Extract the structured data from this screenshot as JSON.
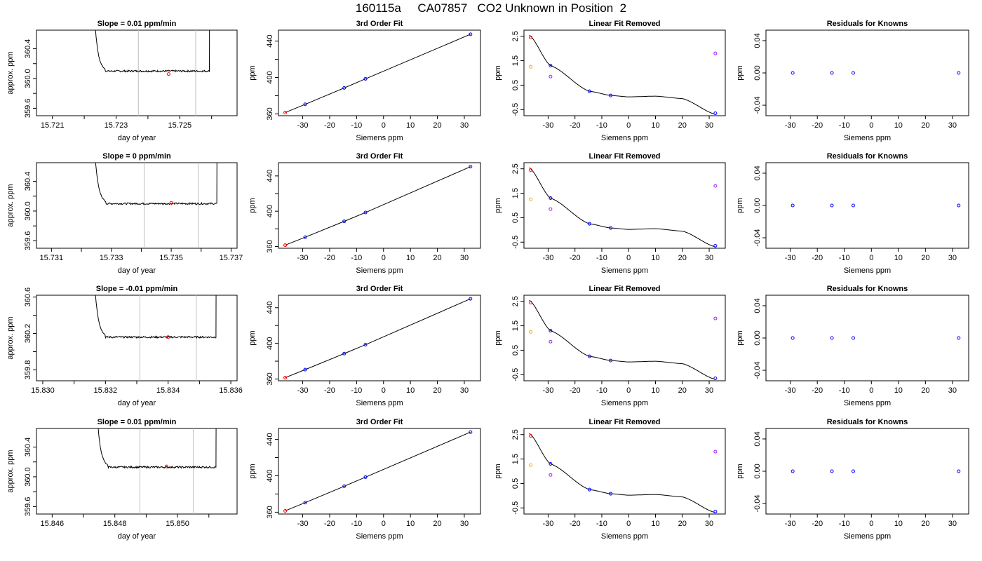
{
  "title": "160115a     CA07857   CO2 Unknown in Position  2",
  "colors": {
    "trace": "#000000",
    "window": "#c0c0c0",
    "marker": "#ff0000",
    "blue": "#0000ff",
    "orange": "#ffa500",
    "purple": "#a020f0",
    "fit": "#000000"
  },
  "chart_data": [
    {
      "type": "line",
      "title": "Slope =  0.01  ppm/min",
      "xlabel": "day of year",
      "ylabel": "approx. ppm",
      "xlim": [
        15.7205,
        15.7268
      ],
      "ylim": [
        359.5,
        360.65
      ],
      "xticks": [
        15.721,
        15.722,
        15.723,
        15.724,
        15.725,
        15.726
      ],
      "xtick_labels": [
        "15.721",
        "",
        "15.723",
        "",
        "15.725",
        ""
      ],
      "yticks": [
        359.6,
        359.8,
        360.0,
        360.2,
        360.4
      ],
      "ytick_labels": [
        "359.6",
        "",
        "360.0",
        "",
        "360.4"
      ],
      "baseline": 360.1,
      "noise": 0.012,
      "trace_x": [
        15.7222,
        15.726
      ],
      "windows": [
        15.7237,
        15.7255
      ],
      "marker": [
        15.72465,
        360.06
      ]
    },
    {
      "type": "scatter",
      "title": "3rd Order Fit",
      "xlabel": "Siemens ppm",
      "ylabel": "ppm",
      "xlim": [
        -39,
        36
      ],
      "ylim": [
        358,
        452
      ],
      "xticks": [
        -30,
        -20,
        -10,
        0,
        10,
        20,
        30
      ],
      "yticks": [
        360,
        380,
        400,
        420,
        440
      ],
      "ytick_labels": [
        "360",
        "",
        "400",
        "",
        "440"
      ],
      "x": [
        -36.5,
        -29.1,
        -14.6,
        -6.7,
        32.3
      ],
      "y": [
        361.5,
        370.5,
        388.5,
        398.5,
        447.5
      ]
    },
    {
      "type": "scatter",
      "title": "Linear Fit Removed",
      "xlabel": "Siemens ppm",
      "ylabel": "ppm",
      "xlim": [
        -39,
        36
      ],
      "ylim": [
        -0.75,
        2.75
      ],
      "xticks": [
        -30,
        -20,
        -10,
        0,
        10,
        20,
        30
      ],
      "yticks": [
        -0.5,
        0.5,
        1.5,
        2.5
      ],
      "ytick_labels": [
        "-0.5",
        "0.5",
        "1.5",
        "2.5"
      ],
      "points_blue": [
        [
          -29.1,
          1.3
        ],
        [
          -14.6,
          0.25
        ],
        [
          -6.7,
          0.08
        ],
        [
          32.3,
          -0.65
        ]
      ],
      "points_purple": [
        [
          -29.1,
          0.85
        ],
        [
          32.3,
          1.8
        ]
      ],
      "points_orange": [
        [
          -36.5,
          1.25
        ]
      ],
      "points_red": [
        [
          -36.5,
          2.45
        ]
      ],
      "curve": [
        0.0,
        -0.0004,
        6.5e-05,
        0.0
      ]
    },
    {
      "type": "scatter",
      "title": "Residuals for Knowns",
      "xlabel": "Siemens ppm",
      "ylabel": "ppm",
      "xlim": [
        -39,
        36
      ],
      "ylim": [
        -0.053,
        0.053
      ],
      "xticks": [
        -30,
        -20,
        -10,
        0,
        10,
        20,
        30
      ],
      "yticks": [
        -0.04,
        0.0,
        0.04
      ],
      "ytick_labels": [
        "-0.04",
        "0.00",
        "0.04"
      ],
      "x": [
        -29.1,
        -14.6,
        -6.7,
        32.3
      ],
      "y": [
        0,
        0,
        0,
        0
      ]
    },
    {
      "type": "line",
      "title": "Slope =  0  ppm/min",
      "xlabel": "day of year",
      "ylabel": "approx. ppm",
      "xlim": [
        15.7305,
        15.7372
      ],
      "ylim": [
        359.5,
        360.65
      ],
      "xticks": [
        15.731,
        15.732,
        15.733,
        15.734,
        15.735,
        15.736,
        15.737
      ],
      "xtick_labels": [
        "15.731",
        "",
        "15.733",
        "",
        "15.735",
        "",
        "15.737"
      ],
      "yticks": [
        359.6,
        359.8,
        360.0,
        360.2,
        360.4
      ],
      "ytick_labels": [
        "359.6",
        "",
        "360.0",
        "",
        "360.4"
      ],
      "baseline": 360.1,
      "noise": 0.012,
      "trace_x": [
        15.7323,
        15.7366
      ],
      "windows": [
        15.7341,
        15.7359
      ],
      "marker": [
        15.735,
        360.11
      ]
    },
    {
      "type": "scatter",
      "title": "3rd Order Fit",
      "xlabel": "Siemens ppm",
      "ylabel": "ppm",
      "xlim": [
        -39,
        36
      ],
      "ylim": [
        358,
        455
      ],
      "xticks": [
        -30,
        -20,
        -10,
        0,
        10,
        20,
        30
      ],
      "yticks": [
        360,
        380,
        400,
        420,
        440
      ],
      "ytick_labels": [
        "360",
        "",
        "400",
        "",
        "440"
      ],
      "x": [
        -36.5,
        -29.1,
        -14.6,
        -6.7,
        32.3
      ],
      "y": [
        361.5,
        370.5,
        388.5,
        398.5,
        450.5
      ]
    },
    {
      "type": "scatter",
      "title": "Linear Fit Removed",
      "xlabel": "Siemens ppm",
      "ylabel": "ppm",
      "xlim": [
        -39,
        36
      ],
      "ylim": [
        -0.75,
        2.75
      ],
      "xticks": [
        -30,
        -20,
        -10,
        0,
        10,
        20,
        30
      ],
      "yticks": [
        -0.5,
        0.5,
        1.5,
        2.5
      ],
      "ytick_labels": [
        "-0.5",
        "0.5",
        "1.5",
        "2.5"
      ],
      "points_blue": [
        [
          -29.1,
          1.3
        ],
        [
          -14.6,
          0.25
        ],
        [
          -6.7,
          0.08
        ],
        [
          32.3,
          -0.65
        ]
      ],
      "points_purple": [
        [
          -29.1,
          0.85
        ],
        [
          32.3,
          1.8
        ]
      ],
      "points_orange": [
        [
          -36.5,
          1.25
        ]
      ],
      "points_red": [
        [
          -36.5,
          2.45
        ]
      ],
      "curve": [
        0.0,
        -0.0004,
        6.5e-05,
        0.0
      ]
    },
    {
      "type": "scatter",
      "title": "Residuals for Knowns",
      "xlabel": "Siemens ppm",
      "ylabel": "ppm",
      "xlim": [
        -39,
        36
      ],
      "ylim": [
        -0.053,
        0.053
      ],
      "xticks": [
        -30,
        -20,
        -10,
        0,
        10,
        20,
        30
      ],
      "yticks": [
        -0.04,
        0.0,
        0.04
      ],
      "ytick_labels": [
        "-0.04",
        "0.00",
        "0.04"
      ],
      "x": [
        -29.1,
        -14.6,
        -6.7,
        32.3
      ],
      "y": [
        0,
        0,
        0,
        0
      ]
    },
    {
      "type": "line",
      "title": "Slope =  -0.01  ppm/min",
      "xlabel": "day of year",
      "ylabel": "approx. ppm",
      "xlim": [
        15.8298,
        15.8362
      ],
      "ylim": [
        359.68,
        360.62
      ],
      "xticks": [
        15.83,
        15.831,
        15.832,
        15.833,
        15.834,
        15.835,
        15.836
      ],
      "xtick_labels": [
        "15.830",
        "",
        "15.832",
        "",
        "15.834",
        "",
        "15.836"
      ],
      "yticks": [
        359.8,
        360.0,
        360.2,
        360.4,
        360.6
      ],
      "ytick_labels": [
        "359.8",
        "",
        "360.2",
        "",
        "360.6"
      ],
      "baseline": 360.16,
      "noise": 0.01,
      "trace_x": [
        15.8315,
        15.8356
      ],
      "windows": [
        15.8331,
        15.8349
      ],
      "marker": [
        15.834,
        360.16
      ]
    },
    {
      "type": "scatter",
      "title": "3rd Order Fit",
      "xlabel": "Siemens ppm",
      "ylabel": "ppm",
      "xlim": [
        -39,
        36
      ],
      "ylim": [
        358,
        454
      ],
      "xticks": [
        -30,
        -20,
        -10,
        0,
        10,
        20,
        30
      ],
      "yticks": [
        360,
        380,
        400,
        420,
        440
      ],
      "ytick_labels": [
        "360",
        "",
        "400",
        "",
        "440"
      ],
      "x": [
        -36.5,
        -29.1,
        -14.6,
        -6.7,
        32.3
      ],
      "y": [
        361.5,
        370.5,
        388.5,
        398.5,
        450
      ]
    },
    {
      "type": "scatter",
      "title": "Linear Fit Removed",
      "xlabel": "Siemens ppm",
      "ylabel": "ppm",
      "xlim": [
        -39,
        36
      ],
      "ylim": [
        -0.75,
        2.75
      ],
      "xticks": [
        -30,
        -20,
        -10,
        0,
        10,
        20,
        30
      ],
      "yticks": [
        -0.5,
        0.5,
        1.5,
        2.5
      ],
      "ytick_labels": [
        "-0.5",
        "0.5",
        "1.5",
        "2.5"
      ],
      "points_blue": [
        [
          -29.1,
          1.3
        ],
        [
          -14.6,
          0.25
        ],
        [
          -6.7,
          0.08
        ],
        [
          32.3,
          -0.65
        ]
      ],
      "points_purple": [
        [
          -29.1,
          0.85
        ],
        [
          32.3,
          1.8
        ]
      ],
      "points_orange": [
        [
          -36.5,
          1.25
        ]
      ],
      "points_red": [
        [
          -36.5,
          2.45
        ]
      ],
      "curve": [
        0.0,
        -0.0004,
        6.5e-05,
        0.0
      ]
    },
    {
      "type": "scatter",
      "title": "Residuals for Knowns",
      "xlabel": "Siemens ppm",
      "ylabel": "ppm",
      "xlim": [
        -39,
        36
      ],
      "ylim": [
        -0.053,
        0.053
      ],
      "xticks": [
        -30,
        -20,
        -10,
        0,
        10,
        20,
        30
      ],
      "yticks": [
        -0.04,
        0.0,
        0.04
      ],
      "ytick_labels": [
        "-0.04",
        "0.00",
        "0.04"
      ],
      "x": [
        -29.1,
        -14.6,
        -6.7,
        32.3
      ],
      "y": [
        0,
        0,
        0,
        0
      ]
    },
    {
      "type": "line",
      "title": "Slope =  0.01  ppm/min",
      "xlabel": "day of year",
      "ylabel": "approx. ppm",
      "xlim": [
        15.8455,
        15.8519
      ],
      "ylim": [
        359.5,
        360.65
      ],
      "xticks": [
        15.846,
        15.847,
        15.848,
        15.849,
        15.85,
        15.851
      ],
      "xtick_labels": [
        "15.846",
        "",
        "15.848",
        "",
        "15.850",
        ""
      ],
      "yticks": [
        359.6,
        359.8,
        360.0,
        360.2,
        360.4
      ],
      "ytick_labels": [
        "359.6",
        "",
        "360.0",
        "",
        "360.4"
      ],
      "baseline": 360.13,
      "noise": 0.012,
      "trace_x": [
        15.8473,
        15.8513
      ],
      "windows": [
        15.8488,
        15.8505
      ],
      "marker": [
        15.84965,
        360.14
      ]
    },
    {
      "type": "scatter",
      "title": "3rd Order Fit",
      "xlabel": "Siemens ppm",
      "ylabel": "ppm",
      "xlim": [
        -39,
        36
      ],
      "ylim": [
        358,
        452
      ],
      "xticks": [
        -30,
        -20,
        -10,
        0,
        10,
        20,
        30
      ],
      "yticks": [
        360,
        380,
        400,
        420,
        440
      ],
      "ytick_labels": [
        "360",
        "",
        "400",
        "",
        "440"
      ],
      "x": [
        -36.5,
        -29.1,
        -14.6,
        -6.7,
        32.3
      ],
      "y": [
        361.5,
        370.5,
        388.5,
        398.5,
        448
      ]
    },
    {
      "type": "scatter",
      "title": "Linear Fit Removed",
      "xlabel": "Siemens ppm",
      "ylabel": "ppm",
      "xlim": [
        -39,
        36
      ],
      "ylim": [
        -0.75,
        2.75
      ],
      "xticks": [
        -30,
        -20,
        -10,
        0,
        10,
        20,
        30
      ],
      "yticks": [
        -0.5,
        0.5,
        1.5,
        2.5
      ],
      "ytick_labels": [
        "-0.5",
        "0.5",
        "1.5",
        "2.5"
      ],
      "points_blue": [
        [
          -29.1,
          1.3
        ],
        [
          -14.6,
          0.25
        ],
        [
          -6.7,
          0.08
        ],
        [
          32.3,
          -0.65
        ]
      ],
      "points_purple": [
        [
          -29.1,
          0.85
        ],
        [
          32.3,
          1.8
        ]
      ],
      "points_orange": [
        [
          -36.5,
          1.25
        ]
      ],
      "points_red": [
        [
          -36.5,
          2.45
        ]
      ],
      "curve": [
        0.0,
        -0.0004,
        6.5e-05,
        0.0
      ]
    },
    {
      "type": "scatter",
      "title": "Residuals for Knowns",
      "xlabel": "Siemens ppm",
      "ylabel": "ppm",
      "xlim": [
        -39,
        36
      ],
      "ylim": [
        -0.053,
        0.053
      ],
      "xticks": [
        -30,
        -20,
        -10,
        0,
        10,
        20,
        30
      ],
      "yticks": [
        -0.04,
        0.0,
        0.04
      ],
      "ytick_labels": [
        "-0.04",
        "0.00",
        "0.04"
      ],
      "x": [
        -29.1,
        -14.6,
        -6.7,
        32.3
      ],
      "y": [
        0,
        0,
        0,
        0
      ]
    }
  ]
}
